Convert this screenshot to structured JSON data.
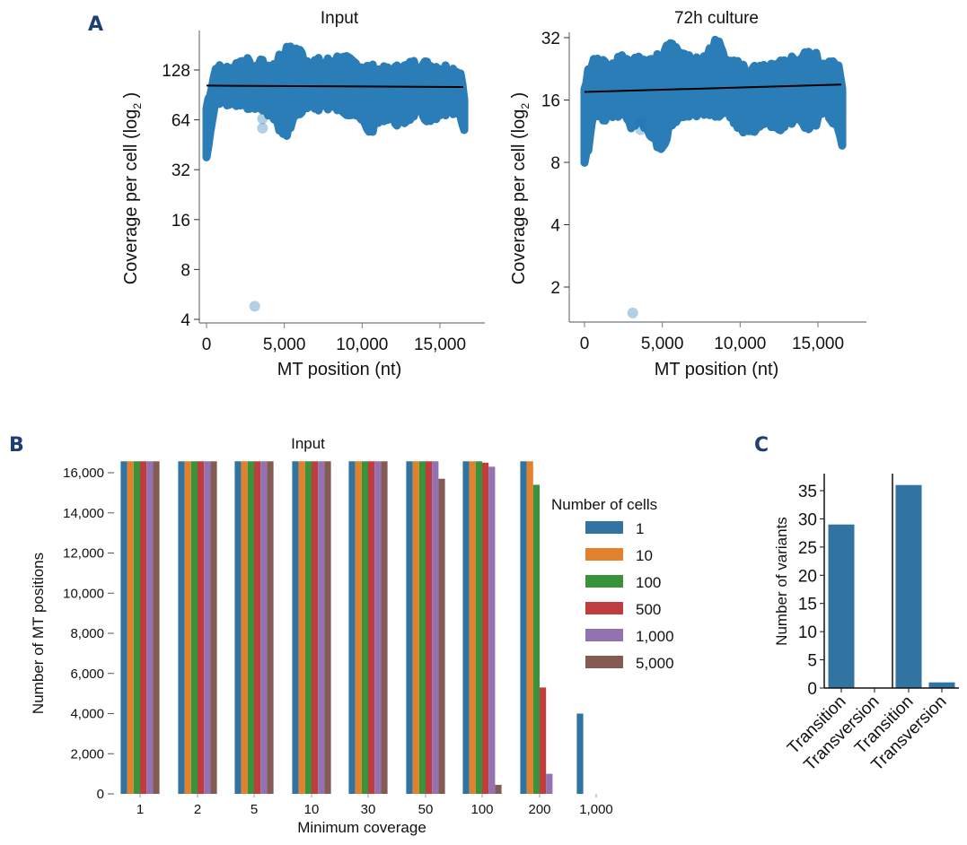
{
  "panels": {
    "A": {
      "letter": "A"
    },
    "B": {
      "letter": "B"
    },
    "C": {
      "letter": "C"
    }
  },
  "chart_data": [
    {
      "id": "A-input",
      "type": "scatter",
      "title": "Input",
      "xlabel": "MT position (nt)",
      "ylabel": "Coverage per cell (log",
      "ylabel_sub": "2",
      "ylabel_end": " )",
      "yscale": "log2",
      "xticks": [
        0,
        5000,
        10000,
        15000
      ],
      "xtick_labels": [
        "0",
        "5,000",
        "10,000",
        "15,000"
      ],
      "yticks": [
        4,
        8,
        16,
        32,
        64,
        128
      ],
      "yticks_labels": [
        "4",
        "8",
        "16",
        "32",
        "64",
        "128"
      ],
      "xlim": [
        -500,
        16800
      ],
      "ylim": [
        4,
        200
      ],
      "point_color": "#1f77b4",
      "band": {
        "x": [
          0,
          300,
          600,
          1500,
          2500,
          3000,
          3500,
          4000,
          5000,
          5800,
          6500,
          7500,
          8500,
          9500,
          10500,
          11500,
          12500,
          13500,
          14500,
          15500,
          16300,
          16569
        ],
        "upper": [
          75,
          100,
          130,
          128,
          150,
          120,
          148,
          125,
          165,
          170,
          145,
          140,
          150,
          140,
          130,
          125,
          130,
          140,
          135,
          130,
          125,
          90
        ],
        "lower": [
          38,
          55,
          85,
          80,
          78,
          80,
          75,
          72,
          50,
          70,
          75,
          78,
          75,
          70,
          55,
          68,
          60,
          72,
          62,
          72,
          68,
          52
        ]
      },
      "outliers": [
        {
          "x": 3100,
          "y": 4.8
        },
        {
          "x": 3600,
          "y": 65
        },
        {
          "x": 3600,
          "y": 57
        }
      ],
      "trend_line": {
        "x": [
          0,
          16500
        ],
        "y": [
          103,
          101
        ]
      }
    },
    {
      "id": "A-72h",
      "type": "scatter",
      "title": "72h culture",
      "xlabel": "MT position (nt)",
      "ylabel": "Coverage per cell (log",
      "ylabel_sub": "2",
      "ylabel_end": " )",
      "yscale": "log2",
      "xticks": [
        0,
        5000,
        10000,
        15000
      ],
      "xtick_labels": [
        "0",
        "5,000",
        "10,000",
        "15,000"
      ],
      "yticks": [
        2,
        4,
        8,
        16,
        32
      ],
      "yticks_labels": [
        "2",
        "4",
        "8",
        "16",
        "32"
      ],
      "xlim": [
        -700,
        17000
      ],
      "ylim": [
        1.4,
        32
      ],
      "point_color": "#1f77b4",
      "band": {
        "x": [
          0,
          300,
          600,
          1500,
          2500,
          3000,
          3500,
          4000,
          5000,
          5500,
          6500,
          7500,
          8500,
          9500,
          10500,
          11500,
          12500,
          13500,
          14500,
          15500,
          16300,
          16569
        ],
        "upper": [
          18,
          22,
          25,
          23,
          26,
          24,
          25,
          23,
          26,
          30,
          25,
          24,
          30,
          24,
          22,
          22,
          23,
          25,
          26,
          24,
          23,
          17
        ],
        "lower": [
          8,
          10,
          14,
          13,
          14,
          12,
          13,
          12,
          9,
          12,
          14,
          14,
          14,
          13,
          11,
          13,
          12,
          13,
          12,
          14,
          12,
          10
        ]
      },
      "outliers": [
        {
          "x": 3100,
          "y": 1.5
        },
        {
          "x": 3600,
          "y": 11.5
        },
        {
          "x": 3600,
          "y": 12.5
        }
      ],
      "trend_line": {
        "x": [
          0,
          16500
        ],
        "y": [
          17.5,
          19.0
        ]
      }
    },
    {
      "id": "B",
      "type": "bar",
      "title": "Input",
      "xlabel": "Minimum coverage",
      "ylabel": "Number of MT positions",
      "categories": [
        "1",
        "2",
        "5",
        "10",
        "30",
        "50",
        "100",
        "200",
        "1,000"
      ],
      "yticks": [
        0,
        2000,
        4000,
        6000,
        8000,
        10000,
        12000,
        14000,
        16000
      ],
      "yticks_labels": [
        "0",
        "2,000",
        "4,000",
        "6,000",
        "8,000",
        "10,000",
        "12,000",
        "14,000",
        "16,000"
      ],
      "ylim": [
        0,
        16569
      ],
      "legend": {
        "title": "Number of cells",
        "position": "right"
      },
      "series": [
        {
          "name": "1",
          "color": "#3274a1",
          "values": [
            16569,
            16569,
            16569,
            16569,
            16569,
            16569,
            16569,
            16569,
            4000
          ]
        },
        {
          "name": "10",
          "color": "#e1812c",
          "values": [
            16569,
            16569,
            16569,
            16569,
            16569,
            16569,
            16569,
            16569,
            0
          ]
        },
        {
          "name": "100",
          "color": "#3a923a",
          "values": [
            16569,
            16569,
            16569,
            16569,
            16569,
            16569,
            16569,
            15400,
            0
          ]
        },
        {
          "name": "500",
          "color": "#c03d3e",
          "values": [
            16569,
            16569,
            16569,
            16569,
            16569,
            16569,
            16500,
            5300,
            0
          ]
        },
        {
          "name": "1,000",
          "color": "#9372b2",
          "values": [
            16569,
            16569,
            16569,
            16569,
            16569,
            16569,
            16300,
            1000,
            0
          ]
        },
        {
          "name": "5,000",
          "color": "#845b53",
          "values": [
            16569,
            16569,
            16569,
            16569,
            16569,
            15700,
            450,
            0,
            0
          ]
        }
      ]
    },
    {
      "id": "C",
      "type": "bar",
      "title": "",
      "xlabel": "",
      "ylabel": "Number of variants",
      "categories": [
        "Transition",
        "Transversion",
        "Transition",
        "Transversion"
      ],
      "values": [
        29,
        0,
        36,
        1
      ],
      "yticks": [
        0,
        5,
        10,
        15,
        20,
        25,
        30,
        35
      ],
      "yticks_labels": [
        "0",
        "5",
        "10",
        "15",
        "20",
        "25",
        "30",
        "35"
      ],
      "ylim": [
        0,
        38
      ],
      "bar_color": "#3274a1",
      "group_separator_after": 1
    }
  ]
}
